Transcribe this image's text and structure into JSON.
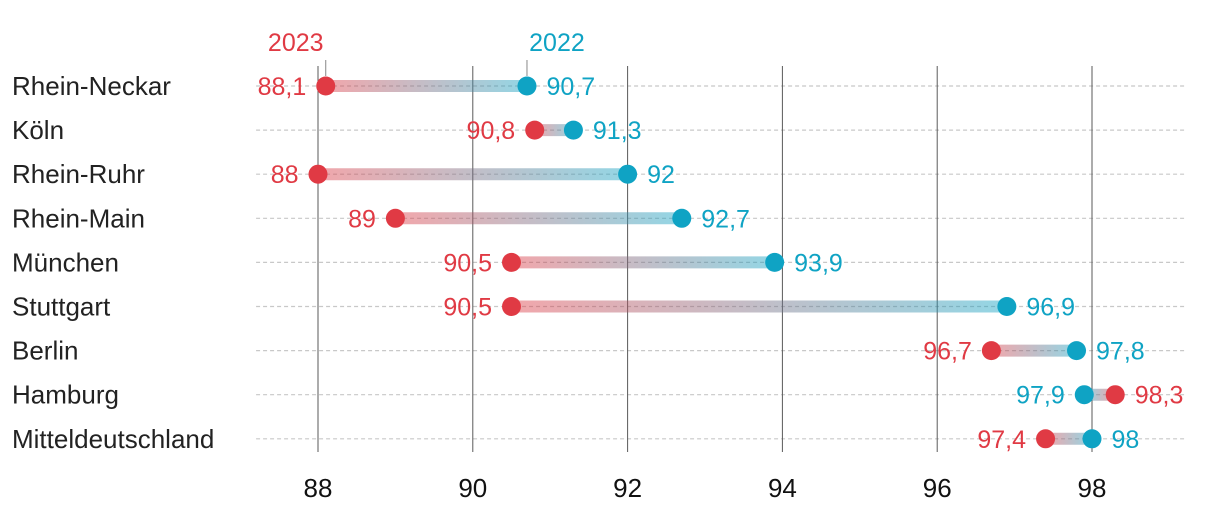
{
  "chart_data": {
    "type": "dumbbell",
    "series": [
      {
        "name": "2023",
        "color": "#e03a44"
      },
      {
        "name": "2022",
        "color": "#0fa3c4"
      }
    ],
    "categories": [
      "Rhein-Neckar",
      "Köln",
      "Rhein-Ruhr",
      "Rhein-Main",
      "München",
      "Stuttgart",
      "Berlin",
      "Hamburg",
      "Mitteldeutschland"
    ],
    "values_2023": [
      88.1,
      90.8,
      88,
      89,
      90.5,
      90.5,
      96.7,
      98.3,
      97.4
    ],
    "values_2022": [
      90.7,
      91.3,
      92,
      92.7,
      93.9,
      96.9,
      97.8,
      97.9,
      98
    ],
    "labels_2023": [
      "88,1",
      "90,8",
      "88",
      "89",
      "90,5",
      "90,5",
      "96,7",
      "98,3",
      "97,4"
    ],
    "labels_2022": [
      "90,7",
      "91,3",
      "92",
      "92,7",
      "93,9",
      "96,9",
      "97,8",
      "97,9",
      "98"
    ],
    "x_ticks": [
      88,
      90,
      92,
      94,
      96,
      98
    ],
    "x_tick_labels": [
      "88",
      "90",
      "92",
      "94",
      "96",
      "98"
    ],
    "xlim": [
      87.2,
      99.2
    ],
    "legend": {
      "label_2023": "2023",
      "label_2022": "2022",
      "anchor_row": 0,
      "placement": "top, above first row"
    }
  }
}
